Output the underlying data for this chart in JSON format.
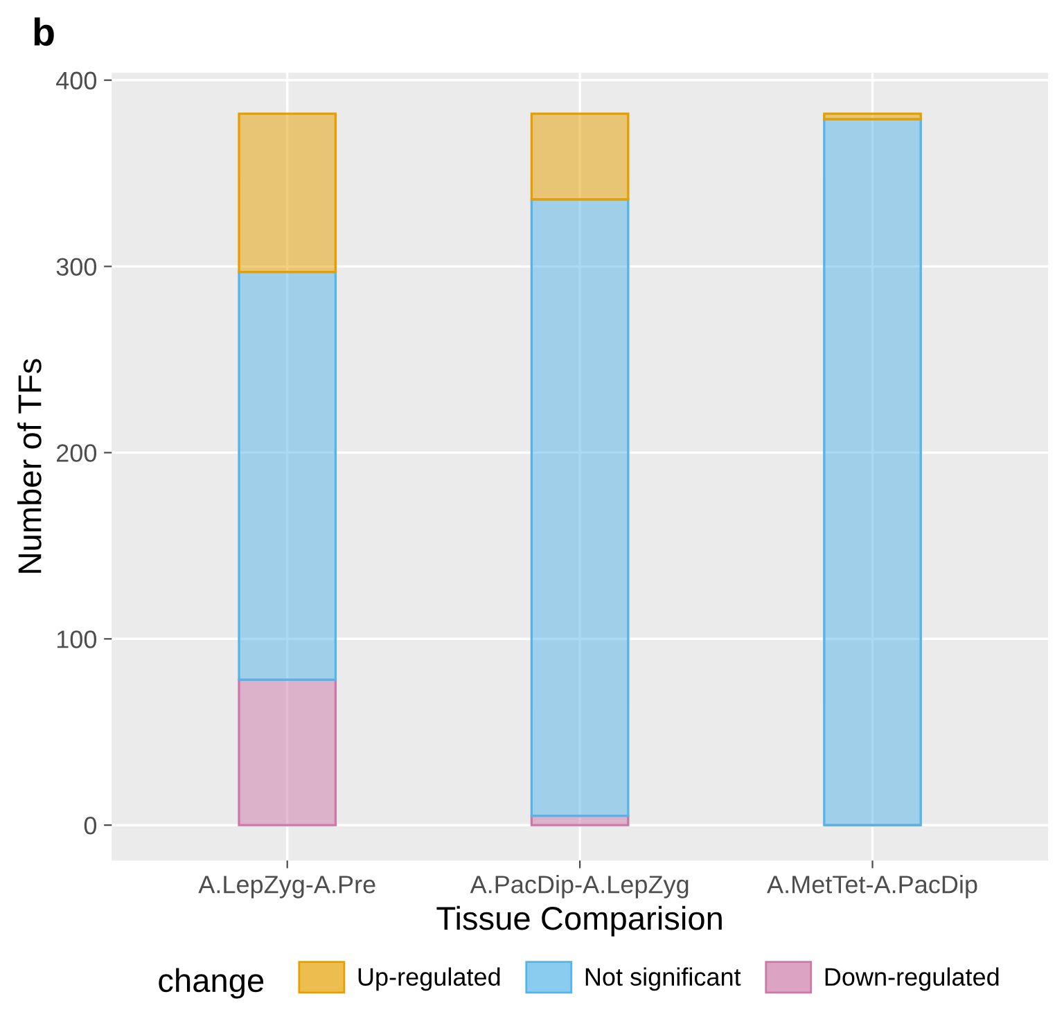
{
  "chart_data": {
    "type": "bar",
    "title": "b",
    "xlabel": "Tissue Comparision",
    "ylabel": "Number of TFs",
    "legend_title": "change",
    "categories": [
      "A.LepZyg-A.Pre",
      "A.PacDip-A.LepZyg",
      "A.MetTet-A.PacDip"
    ],
    "stacked": true,
    "series": [
      {
        "name": "Down-regulated",
        "color": "#cc79a7",
        "values": [
          78,
          5,
          0
        ]
      },
      {
        "name": "Not significant",
        "color": "#56b4e9",
        "values": [
          219,
          331,
          379
        ]
      },
      {
        "name": "Up-regulated",
        "color": "#e69f00",
        "values": [
          85,
          46,
          3
        ]
      }
    ],
    "ylim": [
      -19,
      404
    ],
    "yticks": [
      0,
      100,
      200,
      300,
      400
    ],
    "grid": true,
    "legend": "bottom"
  }
}
